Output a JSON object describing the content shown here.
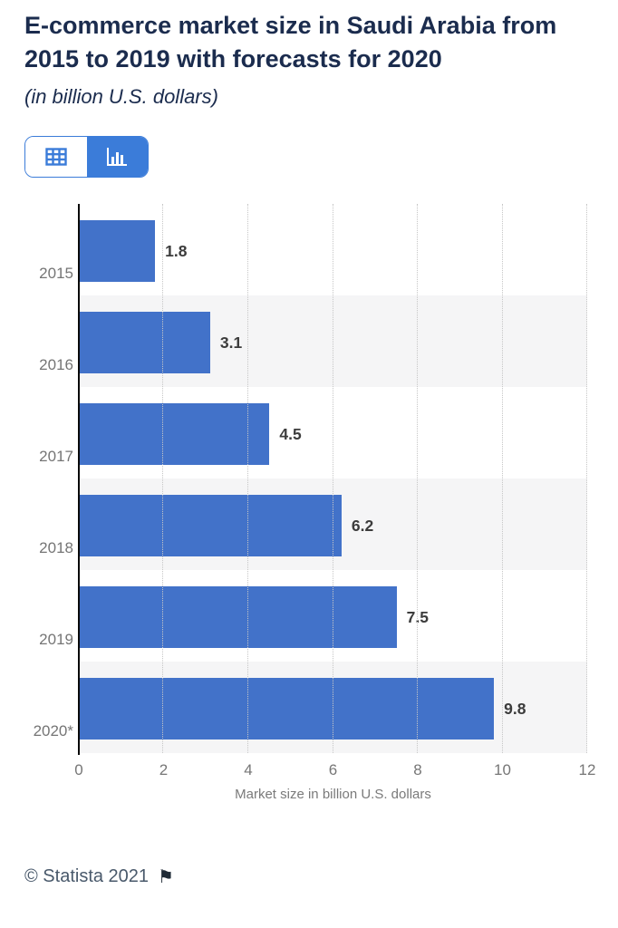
{
  "header": {
    "title": "E-commerce market size in Saudi Arabia from 2015 to 2019 with forecasts for 2020",
    "subtitle": "(in billion U.S. dollars)"
  },
  "toolbar": {
    "table_view": "table view",
    "chart_view": "chart view",
    "active_view": "chart"
  },
  "chart_data": {
    "type": "bar",
    "orientation": "horizontal",
    "categories": [
      "2015",
      "2016",
      "2017",
      "2018",
      "2019",
      "2020*"
    ],
    "values": [
      1.8,
      3.1,
      4.5,
      6.2,
      7.5,
      9.8
    ],
    "value_labels": [
      "1.8",
      "3.1",
      "4.5",
      "6.2",
      "7.5",
      "9.8"
    ],
    "title": "E-commerce market size in Saudi Arabia from 2015 to 2019 with forecasts for 2020",
    "xlabel": "Market size in billion U.S. dollars",
    "ylabel": "",
    "xlim": [
      0,
      12
    ],
    "xticks": [
      "0",
      "2",
      "4",
      "6",
      "8",
      "10",
      "12"
    ],
    "grid": "vertical-dotted",
    "legend": "none",
    "bar_color": "#4272c9",
    "band_color": "#f5f5f6",
    "accent_color": "#3b7cd9"
  },
  "footer": {
    "copyright": "© Statista 2021",
    "flag_icon": "⚑"
  }
}
